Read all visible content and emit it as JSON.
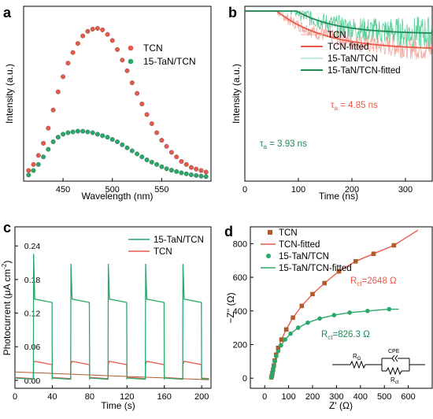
{
  "colors": {
    "tcn": "#e8594a",
    "tan": "#2aa86a",
    "tan_dark": "#1f8a55",
    "brown": "#b35a2a"
  },
  "chart_data": [
    {
      "panel_label": "a",
      "type": "scatter",
      "xlabel": "Wavelength (nm)",
      "ylabel": "Intensity (a.u.)",
      "xlim": [
        410,
        600
      ],
      "xticks": [
        450,
        500,
        550
      ],
      "legend": "top-right",
      "series": [
        {
          "name": "TCN",
          "x": [
            415,
            420,
            425,
            430,
            435,
            440,
            445,
            450,
            455,
            460,
            465,
            470,
            475,
            480,
            485,
            490,
            495,
            500,
            505,
            510,
            515,
            520,
            525,
            530,
            535,
            540,
            545,
            550,
            555,
            560,
            565,
            570,
            575,
            580,
            585,
            590,
            595
          ],
          "y": [
            0.06,
            0.1,
            0.16,
            0.24,
            0.34,
            0.46,
            0.58,
            0.68,
            0.77,
            0.84,
            0.9,
            0.95,
            0.98,
            0.995,
            1.0,
            0.99,
            0.96,
            0.92,
            0.86,
            0.79,
            0.72,
            0.64,
            0.57,
            0.5,
            0.43,
            0.37,
            0.31,
            0.26,
            0.22,
            0.18,
            0.15,
            0.12,
            0.1,
            0.08,
            0.07,
            0.06,
            0.05
          ]
        },
        {
          "name": "15-TaN/TCN",
          "x": [
            415,
            420,
            425,
            430,
            435,
            440,
            445,
            450,
            455,
            460,
            465,
            470,
            475,
            480,
            485,
            490,
            495,
            500,
            505,
            510,
            515,
            520,
            525,
            530,
            535,
            540,
            545,
            550,
            555,
            560,
            565,
            570,
            575,
            580,
            585,
            590,
            595
          ],
          "y": [
            0.03,
            0.06,
            0.1,
            0.15,
            0.2,
            0.25,
            0.28,
            0.3,
            0.31,
            0.315,
            0.32,
            0.32,
            0.315,
            0.31,
            0.3,
            0.29,
            0.28,
            0.265,
            0.25,
            0.23,
            0.21,
            0.19,
            0.17,
            0.15,
            0.13,
            0.115,
            0.1,
            0.085,
            0.072,
            0.062,
            0.053,
            0.045,
            0.038,
            0.032,
            0.027,
            0.023,
            0.02
          ]
        }
      ]
    },
    {
      "panel_label": "b",
      "type": "line",
      "xlabel": "Time (ns)",
      "ylabel": "Intensity (a.u.)",
      "xlim": [
        0,
        350
      ],
      "xticks": [
        0,
        100,
        200,
        300
      ],
      "legend": "top-right",
      "series": [
        {
          "name": "TCN",
          "style": "noisy"
        },
        {
          "name": "TCN-fitted",
          "style": "fit"
        },
        {
          "name": "15-TaN/TCN",
          "style": "noisy"
        },
        {
          "name": "15-TaN/TCN-fitted",
          "style": "fit"
        }
      ],
      "annotations": [
        {
          "text": "τa = 4.85 ns",
          "series": "TCN"
        },
        {
          "text": "τa = 3.93 ns",
          "series": "15-TaN/TCN"
        }
      ],
      "annot_tcn": {
        "tau": "τ",
        "sub": "a",
        "rest": " = 4.85 ns"
      },
      "annot_tan": {
        "tau": "τ",
        "sub": "a",
        "rest": " = 3.93 ns"
      }
    },
    {
      "panel_label": "c",
      "type": "line",
      "xlabel": "Time (s)",
      "ylabel_main": "Photocurrent (μA cm",
      "ylabel_sup": "-2",
      "ylabel_end": ")",
      "xlim": [
        0,
        210
      ],
      "ylim": [
        -0.01,
        0.26
      ],
      "xticks": [
        0,
        40,
        80,
        120,
        160,
        200
      ],
      "yticks": [
        "0.00",
        "0.06",
        "0.12",
        "0.18",
        "0.24"
      ],
      "yticks_values": [
        0,
        0.06,
        0.12,
        0.18,
        0.24
      ],
      "legend": "top-right",
      "on_intervals": [
        [
          20,
          40
        ],
        [
          60,
          80
        ],
        [
          100,
          120
        ],
        [
          140,
          160
        ],
        [
          180,
          200
        ]
      ],
      "series": [
        {
          "name": "15-TaN/TCN",
          "on_level": 0.141,
          "off_level": 0.002,
          "spike": 0.226
        },
        {
          "name": "TCN",
          "on_level": 0.03,
          "off_level": 0.003,
          "spike": 0.032
        }
      ]
    },
    {
      "panel_label": "d",
      "type": "scatter",
      "xlabel": "Z' (Ω)",
      "ylabel": "−Z'' (Ω)",
      "xlim": [
        -60,
        700
      ],
      "ylim": [
        -60,
        900
      ],
      "xticks": [
        0,
        100,
        200,
        300,
        400,
        500,
        600
      ],
      "yticks": [
        0,
        200,
        400,
        600,
        800
      ],
      "legend": "top-left",
      "series": [
        {
          "name": "TCN",
          "x": [
            28,
            30,
            32,
            35,
            38,
            42,
            48,
            56,
            70,
            90,
            118,
            155,
            200,
            250,
            310,
            380,
            455,
            540
          ],
          "y": [
            5,
            15,
            30,
            50,
            75,
            105,
            140,
            180,
            230,
            290,
            360,
            430,
            500,
            565,
            635,
            695,
            740,
            790
          ]
        },
        {
          "name": "TCN-fitted"
        },
        {
          "name": "15-TaN/TCN",
          "x": [
            28,
            30,
            32,
            35,
            38,
            42,
            48,
            56,
            68,
            85,
            108,
            140,
            180,
            230,
            290,
            355,
            430,
            520
          ],
          "y": [
            5,
            15,
            30,
            50,
            72,
            100,
            130,
            160,
            195,
            230,
            265,
            300,
            330,
            355,
            375,
            390,
            400,
            410
          ]
        },
        {
          "name": "15-TaN/TCN-fitted"
        }
      ],
      "annotations": [
        {
          "text": "Rct=2648 Ω",
          "series": "TCN"
        },
        {
          "text": "Rct=826.3 Ω",
          "series": "15-TaN/TCN"
        }
      ],
      "annot_tcn": {
        "r": "R",
        "sub": "ct",
        "rest": "=2648 Ω"
      },
      "annot_tan": {
        "r": "R",
        "sub": "ct",
        "rest": "=826.3 Ω"
      },
      "circuit": {
        "rs_label": "R",
        "rs_sub": "Ω",
        "cpe_label": "CPE",
        "rct_label": "R",
        "rct_sub": "ct"
      }
    }
  ]
}
